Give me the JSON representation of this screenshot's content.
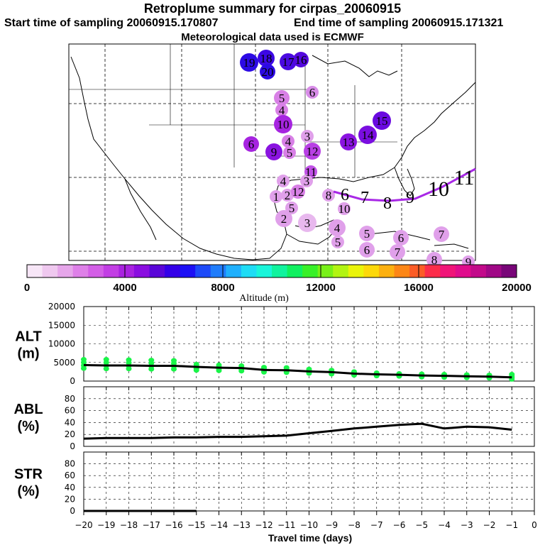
{
  "header": {
    "title": "Retroplume summary for cirpas_20060915",
    "start_sampling": "Start time of sampling 20060915.170807",
    "end_sampling": "End time of sampling 20060915.171321",
    "met_data": "Meteorological data used is ECMWF"
  },
  "colorbar": {
    "title": "Altitude (m)",
    "tick_labels": [
      "0",
      "4000",
      "8000",
      "12000",
      "16000",
      "20000"
    ],
    "colors": [
      "#f7e6f7",
      "#efc8ef",
      "#e6a6ea",
      "#de80e8",
      "#d35ee6",
      "#c23ee4",
      "#a922e0",
      "#8a0de0",
      "#5a06d8",
      "#3400e8",
      "#1c10f5",
      "#1d4af8",
      "#1f7cfb",
      "#1fb0fd",
      "#1edcf5",
      "#19f5da",
      "#10f39e",
      "#10f060",
      "#38f028",
      "#78f018",
      "#b2f412",
      "#eaf40a",
      "#fcd80a",
      "#fcb010",
      "#fc8616",
      "#fc5c26",
      "#fc2c4a",
      "#f01478",
      "#e00c8c",
      "#c20a8a",
      "#a00886",
      "#780678"
    ]
  },
  "map": {
    "plume_points": [
      {
        "label": "19",
        "color": "#2c0ae4"
      },
      {
        "label": "18",
        "color": "#3c08e4"
      },
      {
        "label": "20",
        "color": "#2c0ae4"
      },
      {
        "label": "17",
        "color": "#4a0ae0"
      },
      {
        "label": "16",
        "color": "#5408de"
      },
      {
        "label": "5",
        "color": "#d880e6"
      },
      {
        "label": "6",
        "color": "#d88ce8"
      },
      {
        "label": "4",
        "color": "#d880e6"
      },
      {
        "label": "10",
        "color": "#a624e0"
      },
      {
        "label": "3",
        "color": "#e0a0ea"
      },
      {
        "label": "6",
        "color": "#a624e0"
      },
      {
        "label": "9",
        "color": "#8a14e0"
      },
      {
        "label": "4",
        "color": "#d880e6"
      },
      {
        "label": "5",
        "color": "#d880e6"
      },
      {
        "label": "12",
        "color": "#b840e4"
      },
      {
        "label": "13",
        "color": "#8a14e0"
      },
      {
        "label": "14",
        "color": "#7a0ee0"
      },
      {
        "label": "15",
        "color": "#6a0ae0"
      },
      {
        "label": "11",
        "color": "#c050e6"
      },
      {
        "label": "4",
        "color": "#e0a0ea"
      },
      {
        "label": "2",
        "color": "#e0a0ea"
      },
      {
        "label": "1",
        "color": "#e0a0ea"
      },
      {
        "label": "12",
        "color": "#d880e6"
      },
      {
        "label": "3",
        "color": "#e0a0ea"
      },
      {
        "label": "8",
        "color": "#e0a0ea"
      },
      {
        "label": "10",
        "color": "#e0a0ea"
      },
      {
        "label": "5",
        "color": "#e0a0ea"
      },
      {
        "label": "3",
        "color": "#e8b8ee"
      },
      {
        "label": "2",
        "color": "#e0a0ea"
      },
      {
        "label": "4",
        "color": "#e0a0ea"
      },
      {
        "label": "5",
        "color": "#e0a0ea"
      },
      {
        "label": "5",
        "color": "#e0a0ea"
      },
      {
        "label": "6",
        "color": "#e0a0ea"
      },
      {
        "label": "6",
        "color": "#e0a0ea"
      },
      {
        "label": "7",
        "color": "#e0a0ea"
      },
      {
        "label": "7",
        "color": "#e0a0ea"
      },
      {
        "label": "8",
        "color": "#e0a0ea"
      },
      {
        "label": "9",
        "color": "#e0a0ea"
      }
    ],
    "track_labels": [
      "6",
      "7",
      "8",
      "9",
      "10",
      "11"
    ],
    "track_color": "#a828e6"
  },
  "chart_data": [
    {
      "type": "scatter",
      "panel": "ALT",
      "ylabel": "ALT\n(m)",
      "ylabel_lines": [
        "ALT",
        "(m)"
      ],
      "ylim": [
        0,
        20000
      ],
      "yticks": [
        "0",
        "5000",
        "10000",
        "15000",
        "20000"
      ],
      "xlim": [
        -20,
        0
      ],
      "x": [
        -20,
        -19,
        -18,
        -17,
        -16,
        -15,
        -14,
        -13,
        -12,
        -11,
        -10,
        -9,
        -8,
        -7,
        -6,
        -5,
        -4,
        -3,
        -2,
        -1
      ],
      "median_line": [
        4300,
        4200,
        4200,
        4100,
        4100,
        3800,
        3600,
        3500,
        3000,
        2900,
        2600,
        2400,
        2000,
        1800,
        1700,
        1500,
        1400,
        1300,
        1200,
        1000
      ],
      "spread_low": [
        3400,
        3300,
        3300,
        3200,
        3200,
        2900,
        2800,
        2700,
        2400,
        2300,
        2100,
        1900,
        1600,
        1400,
        1300,
        1100,
        1000,
        900,
        800,
        500
      ],
      "spread_high": [
        5800,
        5800,
        5700,
        5600,
        5500,
        4500,
        4300,
        4100,
        3700,
        3600,
        3200,
        2900,
        2500,
        2200,
        2000,
        1900,
        1800,
        1700,
        1600,
        1800
      ],
      "point_color": "#19f548",
      "line_color": "#000000"
    },
    {
      "type": "line",
      "panel": "ABL",
      "ylabel": "ABL\n(%)",
      "ylabel_lines": [
        "ABL",
        "(%)"
      ],
      "ylim": [
        0,
        100
      ],
      "yticks": [
        "0",
        "20",
        "40",
        "60",
        "80"
      ],
      "xlim": [
        -20,
        0
      ],
      "x": [
        -20,
        -19,
        -18,
        -17,
        -16,
        -15,
        -14,
        -13,
        -12,
        -11,
        -10,
        -9,
        -8,
        -7,
        -6,
        -5,
        -4,
        -3,
        -2,
        -1
      ],
      "values": [
        13,
        14,
        14,
        14,
        15,
        15,
        16,
        16,
        17,
        18,
        22,
        26,
        30,
        33,
        36,
        38,
        30,
        33,
        32,
        28
      ]
    },
    {
      "type": "line",
      "panel": "STR",
      "ylabel": "STR\n(%)",
      "ylabel_lines": [
        "STR",
        "(%)"
      ],
      "ylim": [
        0,
        100
      ],
      "yticks": [
        "0",
        "20",
        "40",
        "60",
        "80"
      ],
      "xlim": [
        -20,
        0
      ],
      "x": [
        -20,
        -19,
        -18,
        -17,
        -16,
        -15,
        -14,
        -13,
        -12,
        -11,
        -10,
        -9,
        -8,
        -7,
        -6,
        -5,
        -4,
        -3,
        -2,
        -1
      ],
      "values": [
        0,
        0,
        0,
        0,
        0,
        0,
        0,
        0,
        0,
        0,
        0,
        0,
        0,
        0,
        0,
        0,
        0,
        0,
        0,
        0
      ]
    }
  ],
  "xaxis": {
    "title": "Travel time (days)",
    "tick_labels": [
      "−20",
      "−19",
      "−18",
      "−17",
      "−16",
      "−15",
      "−14",
      "−13",
      "−12",
      "−11",
      "−10",
      "−9",
      "−8",
      "−7",
      "−6",
      "−5",
      "−4",
      "−3",
      "−2",
      "−1",
      "0"
    ]
  }
}
